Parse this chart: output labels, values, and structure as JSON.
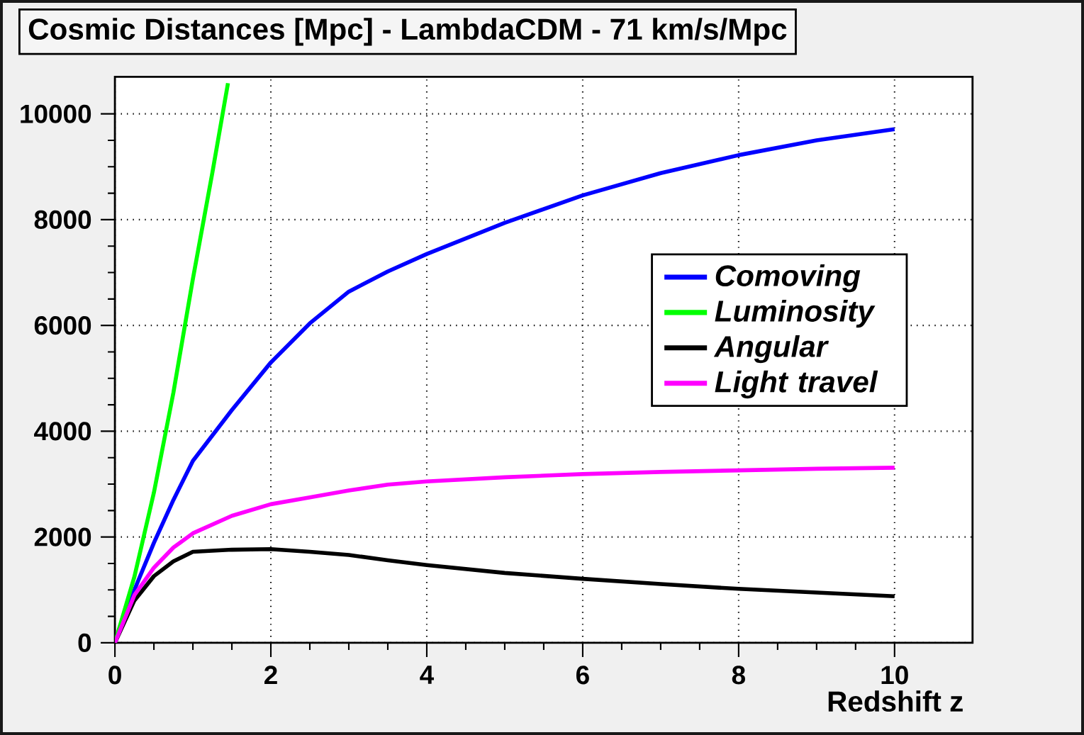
{
  "chart_data": {
    "type": "line",
    "title": "Cosmic Distances [Mpc] - LambdaCDM - 71 km/s/Mpc",
    "xlabel": "Redshift z",
    "xlim": [
      0,
      11
    ],
    "ylim": [
      0,
      10700
    ],
    "xticks": [
      0,
      2,
      4,
      6,
      8,
      10
    ],
    "yticks": [
      0,
      2000,
      4000,
      6000,
      8000,
      10000
    ],
    "grid": true,
    "legend": "right",
    "series": [
      {
        "name": "Comoving",
        "color": "#0000ff",
        "x": [
          0,
          0.25,
          0.5,
          0.75,
          1,
          1.5,
          2,
          2.5,
          3,
          3.5,
          4,
          5,
          6,
          7,
          8,
          9,
          10
        ],
        "values": [
          0,
          1000,
          1890,
          2700,
          3440,
          4400,
          5300,
          6040,
          6640,
          7020,
          7350,
          7940,
          8460,
          8880,
          9220,
          9500,
          9710
        ]
      },
      {
        "name": "Luminosity",
        "color": "#00ff00",
        "x": [
          0,
          0.25,
          0.5,
          0.75,
          1,
          1.25,
          1.45
        ],
        "values": [
          0,
          1250,
          2840,
          4730,
          6880,
          8890,
          10580
        ]
      },
      {
        "name": "Angular",
        "color": "#000000",
        "x": [
          0,
          0.25,
          0.5,
          0.75,
          1,
          1.5,
          2,
          2.5,
          3,
          3.5,
          4,
          5,
          6,
          7,
          8,
          9,
          10
        ],
        "values": [
          0,
          800,
          1260,
          1540,
          1720,
          1760,
          1770,
          1720,
          1660,
          1560,
          1470,
          1320,
          1210,
          1110,
          1020,
          950,
          880
        ]
      },
      {
        "name": "Light travel",
        "color": "#ff00ff",
        "x": [
          0,
          0.25,
          0.5,
          0.75,
          1,
          1.5,
          2,
          2.5,
          3,
          3.5,
          4,
          5,
          6,
          7,
          8,
          9,
          10
        ],
        "values": [
          0,
          900,
          1420,
          1800,
          2070,
          2400,
          2620,
          2750,
          2880,
          2990,
          3050,
          3130,
          3190,
          3230,
          3260,
          3290,
          3310
        ]
      }
    ]
  }
}
